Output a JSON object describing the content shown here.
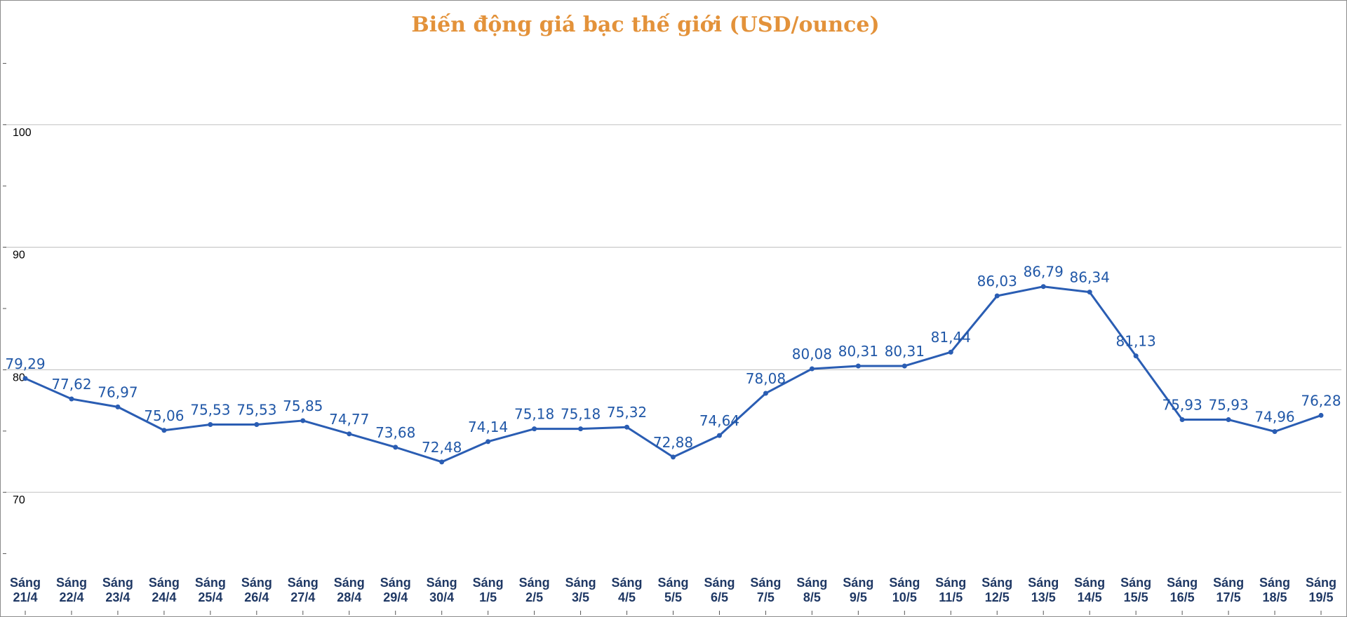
{
  "chart_data": {
    "type": "line",
    "title": "Biến động giá bạc thế giới (USD/ounce)",
    "colors": {
      "title": "#e3923a",
      "line": "#2a5db3",
      "data_label": "#2057a7",
      "x_label": "#1f3864",
      "grid": "#c9c9c9"
    },
    "ylim": [
      60,
      110
    ],
    "y_ticks": [
      "70",
      "80",
      "90",
      "100"
    ],
    "grid": true,
    "legend": "none",
    "x": [
      [
        "Sáng",
        "21/4"
      ],
      [
        "Sáng",
        "22/4"
      ],
      [
        "Sáng",
        "23/4"
      ],
      [
        "Sáng",
        "24/4"
      ],
      [
        "Sáng",
        "25/4"
      ],
      [
        "Sáng",
        "26/4"
      ],
      [
        "Sáng",
        "27/4"
      ],
      [
        "Sáng",
        "28/4"
      ],
      [
        "Sáng",
        "29/4"
      ],
      [
        "Sáng",
        "30/4"
      ],
      [
        "Sáng",
        "1/5"
      ],
      [
        "Sáng",
        "2/5"
      ],
      [
        "Sáng",
        "3/5"
      ],
      [
        "Sáng",
        "4/5"
      ],
      [
        "Sáng",
        "5/5"
      ],
      [
        "Sáng",
        "6/5"
      ],
      [
        "Sáng",
        "7/5"
      ],
      [
        "Sáng",
        "8/5"
      ],
      [
        "Sáng",
        "9/5"
      ],
      [
        "Sáng",
        "10/5"
      ],
      [
        "Sáng",
        "11/5"
      ],
      [
        "Sáng",
        "12/5"
      ],
      [
        "Sáng",
        "13/5"
      ],
      [
        "Sáng",
        "14/5"
      ],
      [
        "Sáng",
        "15/5"
      ],
      [
        "Sáng",
        "16/5"
      ],
      [
        "Sáng",
        "17/5"
      ],
      [
        "Sáng",
        "18/5"
      ],
      [
        "Sáng",
        "19/5"
      ]
    ],
    "values": [
      79.29,
      77.62,
      76.97,
      75.06,
      75.53,
      75.53,
      75.85,
      74.77,
      73.68,
      72.48,
      74.14,
      75.18,
      75.18,
      75.32,
      72.88,
      74.64,
      78.08,
      80.08,
      80.31,
      80.31,
      81.44,
      86.03,
      86.79,
      86.34,
      81.13,
      75.93,
      75.93,
      74.96,
      76.28
    ],
    "data_labels": [
      "79,29",
      "77,62",
      "76,97",
      "75,06",
      "75,53",
      "75,53",
      "75,85",
      "74,77",
      "73,68",
      "72,48",
      "74,14",
      "75,18",
      "75,18",
      "75,32",
      "72,88",
      "74,64",
      "78,08",
      "80,08",
      "80,31",
      "80,31",
      "81,44",
      "86,03",
      "86,79",
      "86,34",
      "81,13",
      "75,93",
      "75,93",
      "74,96",
      "76,28"
    ]
  }
}
